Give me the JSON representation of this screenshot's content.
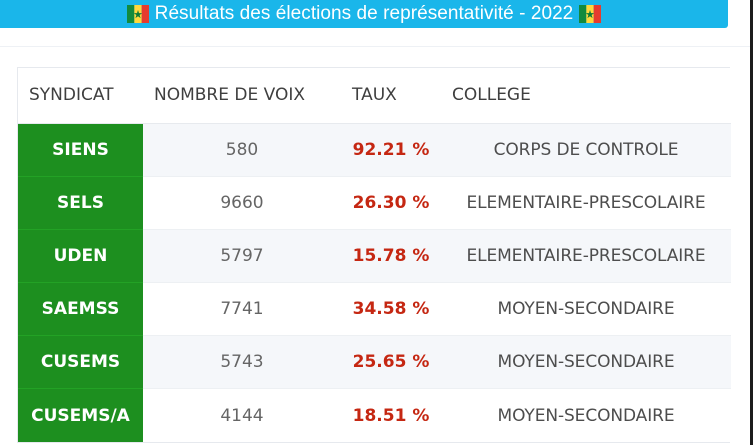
{
  "header": {
    "title": "Résultats des élections de représentativité - 2022",
    "left_icon": "senegal-flag-icon",
    "right_icon": "senegal-flag-icon"
  },
  "table": {
    "columns": [
      {
        "label": "SYNDICAT"
      },
      {
        "label": "NOMBRE DE VOIX"
      },
      {
        "label": "TAUX"
      },
      {
        "label": "COLLEGE"
      }
    ],
    "rows": [
      {
        "syndicat": "SIENS",
        "voix": "580",
        "taux": "92.21 %",
        "college": "CORPS DE CONTROLE"
      },
      {
        "syndicat": "SELS",
        "voix": "9660",
        "taux": "26.30 %",
        "college": "ELEMENTAIRE-PRESCOLAIRE"
      },
      {
        "syndicat": "UDEN",
        "voix": "5797",
        "taux": "15.78 %",
        "college": "ELEMENTAIRE-PRESCOLAIRE"
      },
      {
        "syndicat": "SAEMSS",
        "voix": "7741",
        "taux": "34.58 %",
        "college": "MOYEN-SECONDAIRE"
      },
      {
        "syndicat": "CUSEMS",
        "voix": "5743",
        "taux": "25.65 %",
        "college": "MOYEN-SECONDAIRE"
      },
      {
        "syndicat": "CUSEMS/A",
        "voix": "4144",
        "taux": "18.51 %",
        "college": "MOYEN-SECONDAIRE"
      }
    ]
  },
  "colors": {
    "title_bar": "#1ab6ea",
    "syndicat_cell": "#1d8f1f",
    "rate_text": "#c52712"
  }
}
